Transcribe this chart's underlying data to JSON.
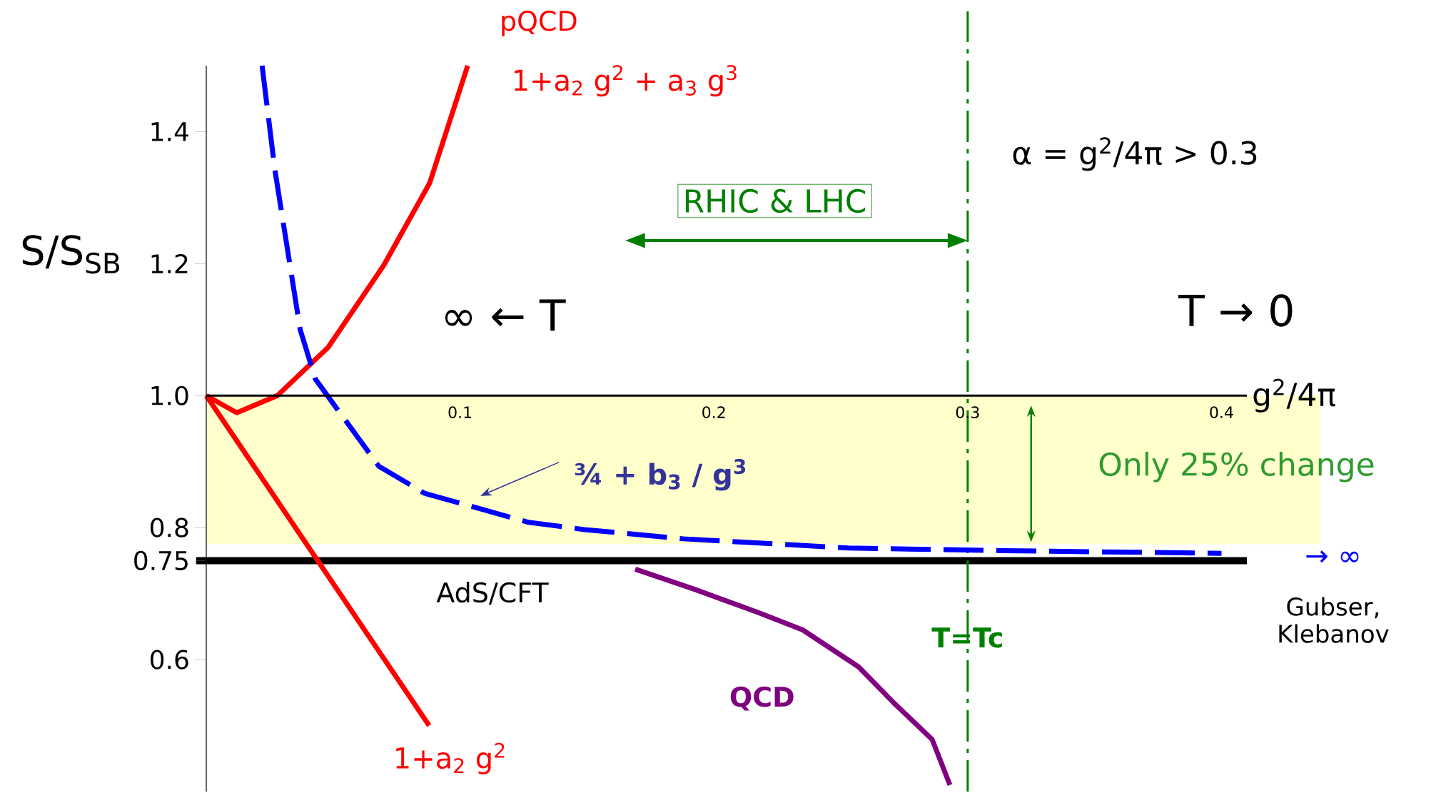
{
  "chart_data": {
    "type": "line",
    "xlabel": "g$^{2}$/4π",
    "ylabel": "S/S$_{SB}$",
    "xlim": [
      0,
      0.41
    ],
    "ylim": [
      0.4,
      1.5
    ],
    "xticks": [
      0.1,
      0.2,
      0.3,
      0.4
    ],
    "yticks": [
      0.6,
      0.75,
      0.8,
      {
        "value": 1.0,
        "label": "1.0"
      },
      1.2,
      1.4
    ],
    "grid": false,
    "legend": false,
    "marker": "none",
    "series": [
      {
        "name": "1+a$_{2}$ g$^{2}$",
        "color": "#ff0000",
        "x": [
          0,
          0.0878
        ],
        "values": [
          1.0,
          0.5
        ]
      },
      {
        "name": "1+a$_{2}$ g$^{2}$ + a$_{3}$ g$^{3}$",
        "color": "#ff0000",
        "x": [
          0,
          0.012,
          0.028,
          0.048,
          0.07,
          0.088,
          0.103
        ],
        "values": [
          1.0,
          0.974,
          1.0,
          1.073,
          1.198,
          1.322,
          1.5
        ]
      },
      {
        "name": "¾ + b$_{3}$ / g$^{3}$",
        "color": "#0000ff",
        "line_style": "dashed",
        "x": [
          0.022,
          0.027,
          0.037,
          0.043,
          0.068,
          0.086,
          0.127,
          0.149,
          0.188,
          0.253,
          0.314,
          0.4
        ],
        "values": [
          1.5,
          1.343,
          1.1,
          1.025,
          0.893,
          0.852,
          0.808,
          0.797,
          0.783,
          0.769,
          0.765,
          0.761
        ]
      },
      {
        "name": "QCD",
        "color": "#800080",
        "x": [
          0.169,
          0.192,
          0.217,
          0.235,
          0.257,
          0.271,
          0.286,
          0.293
        ],
        "values": [
          0.737,
          0.707,
          0.672,
          0.645,
          0.589,
          0.534,
          0.479,
          0.41
        ]
      }
    ],
    "ref_lines": [
      {
        "axis": "y",
        "value": 0.75,
        "label": "AdS/CFT",
        "color": "#000000"
      },
      {
        "axis": "x",
        "value": 0.3,
        "label": "T=Tc",
        "color": "#008000",
        "line_style": "dashed"
      }
    ],
    "bands": [
      {
        "axis": "y",
        "from": 0.775,
        "to": 1.0,
        "label": "Only 25% change",
        "color": "#ffffcc"
      }
    ],
    "annotations": [
      "pQCD",
      "RHIC  & LHC",
      "∞ ← T",
      "T → 0",
      "α = g$^{2}$/4π > 0.3",
      "→  ∞",
      "Gubser, Klebanov"
    ]
  }
}
